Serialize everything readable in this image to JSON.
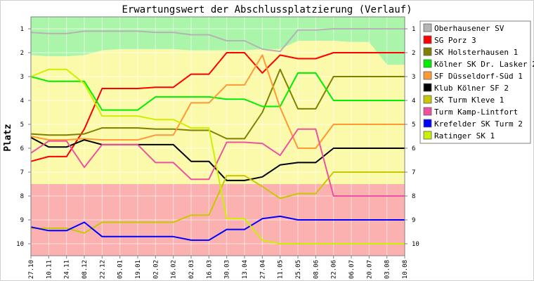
{
  "chart_data": {
    "type": "line",
    "title": "Erwartungswert der Abschlussplatzierung (Verlauf)",
    "ylabel": "Platz",
    "xlabel": "",
    "ylim": [
      10.5,
      0.5
    ],
    "y_ticks": [
      "1",
      "2",
      "3",
      "4",
      "5",
      "6",
      "7",
      "8",
      "9",
      "10"
    ],
    "x": [
      "27.10",
      "10.11",
      "24.11",
      "08.12",
      "22.12",
      "05.01",
      "19.01",
      "02.02",
      "16.02",
      "02.03",
      "16.03",
      "30.03",
      "13.04",
      "27.04",
      "11.05",
      "25.05",
      "08.06",
      "22.06",
      "06.07",
      "20.07",
      "03.08",
      "10.08"
    ],
    "grid": true,
    "legend_position": "right",
    "zones": [
      {
        "name": "green",
        "color": "#aaf5aa",
        "upper": [
          2.1,
          2.15,
          2.15,
          2.1,
          1.9,
          1.85,
          1.85,
          1.85,
          1.85,
          1.9,
          1.9,
          1.9,
          1.9,
          1.85,
          1.85,
          1.5,
          1.5,
          1.5,
          1.55,
          1.55,
          2.5,
          2.5
        ]
      },
      {
        "name": "yellow",
        "color": "#fafaaa",
        "lower": 7.5
      },
      {
        "name": "red",
        "color": "#fcb1b1"
      }
    ],
    "series": [
      {
        "name": "Oberhausener SV",
        "color": "#b4b4b4",
        "values": [
          1.15,
          1.2,
          1.2,
          1.1,
          1.1,
          1.1,
          1.1,
          1.15,
          1.15,
          1.25,
          1.25,
          1.5,
          1.5,
          1.85,
          1.95,
          1.05,
          1.05,
          1.0,
          1.0,
          1.0,
          1.0,
          1.0
        ]
      },
      {
        "name": "SG Porz 3",
        "color": "#ff0000",
        "values": [
          6.55,
          6.35,
          6.35,
          5.2,
          3.5,
          3.5,
          3.5,
          3.45,
          3.45,
          2.9,
          2.9,
          2.0,
          2.0,
          2.85,
          2.1,
          2.25,
          2.25,
          2.0,
          2.0,
          2.0,
          2.0,
          2.0
        ]
      },
      {
        "name": "SK Holsterhausen 1",
        "color": "#808000",
        "values": [
          5.4,
          5.45,
          5.45,
          5.4,
          5.15,
          5.15,
          5.15,
          5.2,
          5.2,
          5.25,
          5.25,
          5.6,
          5.6,
          4.5,
          2.7,
          4.35,
          4.35,
          3.0,
          3.0,
          3.0,
          3.0,
          3.0
        ]
      },
      {
        "name": "Kölner SK Dr. Lasker 2",
        "color": "#00ee00",
        "values": [
          3.0,
          3.2,
          3.2,
          3.2,
          4.4,
          4.4,
          4.4,
          3.85,
          3.85,
          3.85,
          3.85,
          3.95,
          3.95,
          4.25,
          4.25,
          2.85,
          2.85,
          4.0,
          4.0,
          4.0,
          4.0,
          4.0
        ]
      },
      {
        "name": "SF Düsseldorf-Süd 1",
        "color": "#ff9933",
        "values": [
          5.5,
          5.65,
          5.65,
          5.6,
          5.65,
          5.65,
          5.65,
          5.45,
          5.45,
          4.1,
          4.1,
          3.35,
          3.35,
          2.1,
          4.3,
          6.0,
          6.0,
          5.0,
          5.0,
          5.0,
          5.0,
          5.0
        ]
      },
      {
        "name": "Klub Kölner SF 2",
        "color": "#000000",
        "values": [
          5.55,
          5.95,
          5.95,
          5.65,
          5.85,
          5.85,
          5.85,
          5.85,
          5.85,
          6.55,
          6.55,
          7.35,
          7.35,
          7.2,
          6.7,
          6.6,
          6.6,
          6.0,
          6.0,
          6.0,
          6.0,
          6.0
        ]
      },
      {
        "name": "SK Turm Kleve 1",
        "color": "#c8c800",
        "values": [
          9.35,
          9.35,
          9.35,
          9.55,
          9.1,
          9.1,
          9.1,
          9.1,
          9.1,
          8.8,
          8.8,
          7.15,
          7.15,
          7.6,
          8.1,
          7.9,
          7.9,
          7.0,
          7.0,
          7.0,
          7.0,
          7.0
        ]
      },
      {
        "name": "Turm Kamp-Lintfort",
        "color": "#f050a0",
        "values": [
          6.2,
          5.7,
          5.7,
          6.8,
          5.85,
          5.85,
          5.85,
          6.6,
          6.6,
          7.3,
          7.3,
          5.75,
          5.75,
          5.8,
          6.3,
          5.2,
          5.2,
          8.0,
          8.0,
          8.0,
          8.0,
          8.0
        ]
      },
      {
        "name": "Krefelder SK Turm 2",
        "color": "#0000ff",
        "values": [
          9.3,
          9.45,
          9.45,
          9.1,
          9.7,
          9.7,
          9.7,
          9.7,
          9.7,
          9.85,
          9.85,
          9.4,
          9.4,
          8.95,
          8.85,
          9.0,
          9.0,
          9.0,
          9.0,
          9.0,
          9.0,
          9.0
        ]
      },
      {
        "name": "Ratinger SK 1",
        "color": "#ccf000",
        "values": [
          3.0,
          2.7,
          2.7,
          3.3,
          4.65,
          4.65,
          4.65,
          4.8,
          4.8,
          5.15,
          5.15,
          8.95,
          8.95,
          9.85,
          10.0,
          10.0,
          10.0,
          10.0,
          10.0,
          10.0,
          10.0,
          10.0
        ]
      }
    ]
  }
}
